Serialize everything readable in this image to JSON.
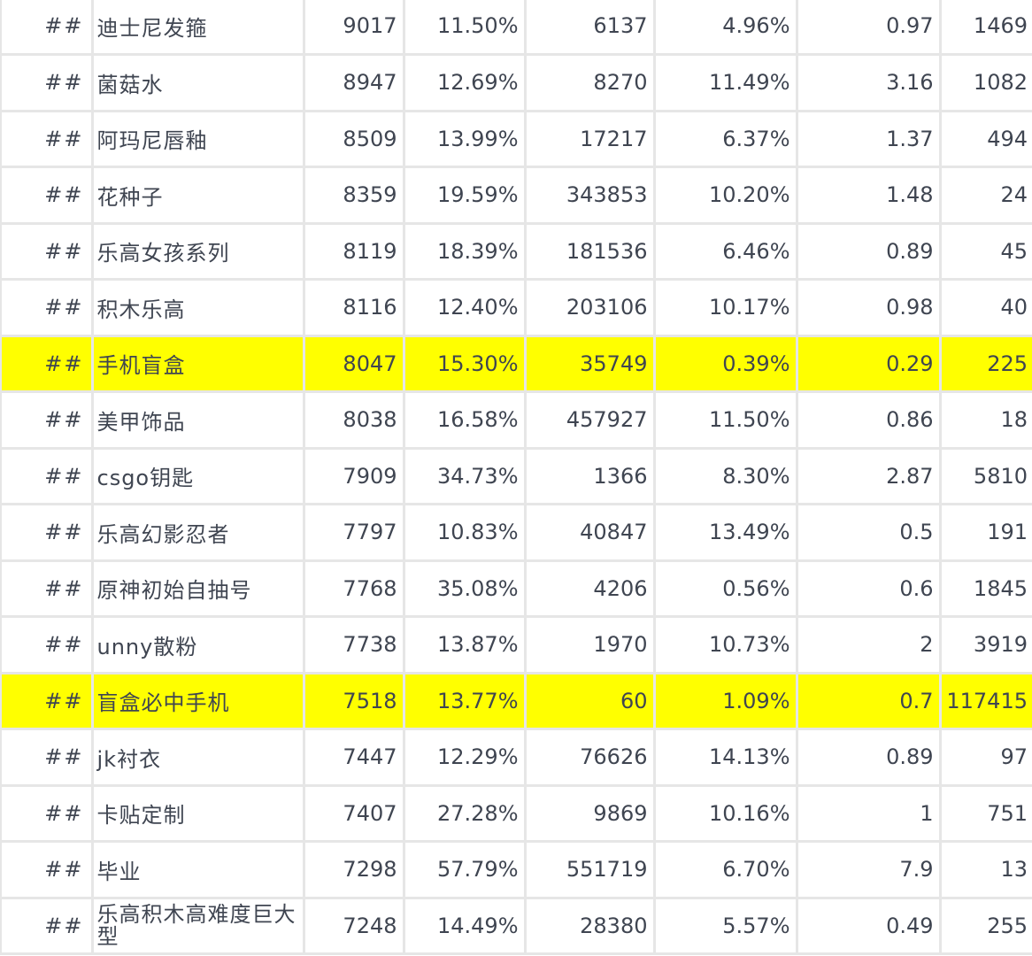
{
  "rows": [
    {
      "mark": "##",
      "name": "迪士尼发箍",
      "c1": "9017",
      "c2": "11.50%",
      "c3": "6137",
      "c4": "4.96%",
      "c5": "0.97",
      "c6": "1469",
      "highlight": false
    },
    {
      "mark": "##",
      "name": "菌菇水",
      "c1": "8947",
      "c2": "12.69%",
      "c3": "8270",
      "c4": "11.49%",
      "c5": "3.16",
      "c6": "1082",
      "highlight": false
    },
    {
      "mark": "##",
      "name": "阿玛尼唇釉",
      "c1": "8509",
      "c2": "13.99%",
      "c3": "17217",
      "c4": "6.37%",
      "c5": "1.37",
      "c6": "494",
      "highlight": false
    },
    {
      "mark": "##",
      "name": "花种子",
      "c1": "8359",
      "c2": "19.59%",
      "c3": "343853",
      "c4": "10.20%",
      "c5": "1.48",
      "c6": "24",
      "highlight": false
    },
    {
      "mark": "##",
      "name": "乐高女孩系列",
      "c1": "8119",
      "c2": "18.39%",
      "c3": "181536",
      "c4": "6.46%",
      "c5": "0.89",
      "c6": "45",
      "highlight": false
    },
    {
      "mark": "##",
      "name": "积木乐高",
      "c1": "8116",
      "c2": "12.40%",
      "c3": "203106",
      "c4": "10.17%",
      "c5": "0.98",
      "c6": "40",
      "highlight": false
    },
    {
      "mark": "##",
      "name": "手机盲盒",
      "c1": "8047",
      "c2": "15.30%",
      "c3": "35749",
      "c4": "0.39%",
      "c5": "0.29",
      "c6": "225",
      "highlight": true
    },
    {
      "mark": "##",
      "name": "美甲饰品",
      "c1": "8038",
      "c2": "16.58%",
      "c3": "457927",
      "c4": "11.50%",
      "c5": "0.86",
      "c6": "18",
      "highlight": false
    },
    {
      "mark": "##",
      "name": "csgo钥匙",
      "c1": "7909",
      "c2": "34.73%",
      "c3": "1366",
      "c4": "8.30%",
      "c5": "2.87",
      "c6": "5810",
      "highlight": false
    },
    {
      "mark": "##",
      "name": "乐高幻影忍者",
      "c1": "7797",
      "c2": "10.83%",
      "c3": "40847",
      "c4": "13.49%",
      "c5": "0.5",
      "c6": "191",
      "highlight": false
    },
    {
      "mark": "##",
      "name": "原神初始自抽号",
      "c1": "7768",
      "c2": "35.08%",
      "c3": "4206",
      "c4": "0.56%",
      "c5": "0.6",
      "c6": "1845",
      "highlight": false
    },
    {
      "mark": "##",
      "name": "unny散粉",
      "c1": "7738",
      "c2": "13.87%",
      "c3": "1970",
      "c4": "10.73%",
      "c5": "2",
      "c6": "3919",
      "highlight": false
    },
    {
      "mark": "##",
      "name": "盲盒必中手机",
      "c1": "7518",
      "c2": "13.77%",
      "c3": "60",
      "c4": "1.09%",
      "c5": "0.7",
      "c6": "117415",
      "highlight": true
    },
    {
      "mark": "##",
      "name": "jk衬衣",
      "c1": "7447",
      "c2": "12.29%",
      "c3": "76626",
      "c4": "14.13%",
      "c5": "0.89",
      "c6": "97",
      "highlight": false
    },
    {
      "mark": "##",
      "name": "卡贴定制",
      "c1": "7407",
      "c2": "27.28%",
      "c3": "9869",
      "c4": "10.16%",
      "c5": "1",
      "c6": "751",
      "highlight": false
    },
    {
      "mark": "##",
      "name": "毕业",
      "c1": "7298",
      "c2": "57.79%",
      "c3": "551719",
      "c4": "6.70%",
      "c5": "7.9",
      "c6": "13",
      "highlight": false
    },
    {
      "mark": "##",
      "name": "乐高积木高难度巨大型",
      "c1": "7248",
      "c2": "14.49%",
      "c3": "28380",
      "c4": "5.57%",
      "c5": "0.49",
      "c6": "255",
      "highlight": false,
      "wrap": true
    }
  ],
  "highlight_color": "#ffff00"
}
